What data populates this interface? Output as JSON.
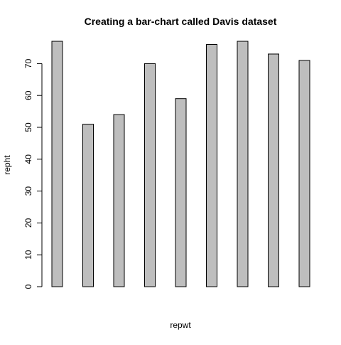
{
  "chart_data": {
    "type": "bar",
    "title": "Creating a bar-chart called Davis dataset",
    "xlabel": "repwt",
    "ylabel": "repht",
    "values": [
      77,
      51,
      54,
      70,
      59,
      76,
      77,
      73,
      71
    ],
    "ylim": [
      0,
      80
    ],
    "y_ticks": [
      0,
      10,
      20,
      30,
      40,
      50,
      60,
      70
    ],
    "grid": false,
    "legend": "none",
    "bar_color": "#bebebe",
    "border_color": "#000000"
  }
}
